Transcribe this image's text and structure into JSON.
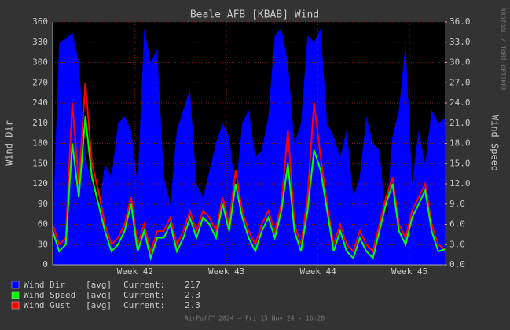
{
  "chart_data": {
    "type": "rrd-area-line",
    "title": "Beale AFB [KBAB] Wind",
    "y_label": "Wind Dir",
    "y2_label": "Wind Speed",
    "watermark": "RRDTOOL / TOBI OETIKER",
    "footer": "AirPuff™ 2024 — Fri 15 Nov 24 - 16:28",
    "legend_cf": "[avg]",
    "legend_current_label": "Current:",
    "xlim": [
      0,
      30
    ],
    "xticks": [
      {
        "value": 6.3,
        "label": "Week 42"
      },
      {
        "value": 13.3,
        "label": "Week 43"
      },
      {
        "value": 20.3,
        "label": "Week 44"
      },
      {
        "value": 27.3,
        "label": "Week 45"
      }
    ],
    "ylim": [
      0,
      360
    ],
    "yticks": [
      0,
      30,
      60,
      90,
      120,
      150,
      180,
      210,
      240,
      270,
      300,
      330,
      360
    ],
    "y2lim": [
      0,
      36
    ],
    "y2ticks": [
      {
        "value": 0,
        "label": "0.0"
      },
      {
        "value": 3,
        "label": "3.0"
      },
      {
        "value": 6,
        "label": "6.0"
      },
      {
        "value": 9,
        "label": "9.0"
      },
      {
        "value": 12,
        "label": "12.0"
      },
      {
        "value": 15,
        "label": "15.0"
      },
      {
        "value": 18,
        "label": "18.0"
      },
      {
        "value": 21,
        "label": "21.0"
      },
      {
        "value": 24,
        "label": "24.0"
      },
      {
        "value": 27,
        "label": "27.0"
      },
      {
        "value": 30,
        "label": "30.0"
      },
      {
        "value": 33,
        "label": "33.0"
      },
      {
        "value": 36,
        "label": "36.0"
      }
    ],
    "grid": true,
    "x": [
      0,
      0.5,
      1,
      1.5,
      2,
      2.5,
      3,
      3.5,
      4,
      4.5,
      5,
      5.5,
      6,
      6.5,
      7,
      7.5,
      8,
      8.5,
      9,
      9.5,
      10,
      10.5,
      11,
      11.5,
      12,
      12.5,
      13,
      13.5,
      14,
      14.5,
      15,
      15.5,
      16,
      16.5,
      17,
      17.5,
      18,
      18.5,
      19,
      19.5,
      20,
      20.5,
      21,
      21.5,
      22,
      22.5,
      23,
      23.5,
      24,
      24.5,
      25,
      25.5,
      26,
      26.5,
      27,
      27.5,
      28,
      28.5,
      29,
      29.5,
      30
    ],
    "series": [
      {
        "name": "Wind Dir",
        "color": "#0000ff",
        "style": "area",
        "current": 217,
        "values": [
          60,
          330,
          335,
          345,
          300,
          160,
          120,
          80,
          150,
          130,
          210,
          220,
          200,
          120,
          350,
          300,
          320,
          130,
          90,
          200,
          230,
          260,
          120,
          100,
          140,
          180,
          210,
          190,
          110,
          210,
          230,
          160,
          170,
          220,
          340,
          350,
          300,
          180,
          210,
          340,
          330,
          350,
          210,
          190,
          160,
          200,
          100,
          130,
          220,
          180,
          170,
          70,
          190,
          230,
          330,
          120,
          200,
          150,
          230,
          210,
          217
        ]
      },
      {
        "name": "Wind Speed",
        "color": "#00ff00",
        "style": "line",
        "axis": "y2",
        "current": 2.3,
        "values": [
          5,
          2,
          3,
          18,
          10,
          22,
          13,
          9,
          5,
          2,
          3,
          5,
          9,
          2,
          5,
          1,
          4,
          4,
          6,
          2,
          4,
          7,
          4,
          7,
          6,
          4,
          9,
          5,
          12,
          7,
          4,
          2,
          5,
          7,
          4,
          8,
          15,
          5,
          2,
          8,
          17,
          14,
          8,
          2,
          5,
          2,
          1,
          4,
          2,
          1,
          5,
          9,
          12,
          5,
          3,
          7,
          9,
          11,
          5,
          2,
          2.3
        ]
      },
      {
        "name": "Wind Gust",
        "color": "#ff0000",
        "style": "line",
        "axis": "y2",
        "current": 2.3,
        "values": [
          6,
          3,
          4,
          24,
          12,
          27,
          15,
          11,
          6,
          3,
          4,
          6,
          10,
          3,
          6,
          2,
          5,
          5,
          7,
          3,
          5,
          8,
          5,
          8,
          7,
          5,
          10,
          6,
          14,
          8,
          5,
          3,
          6,
          8,
          5,
          9,
          20,
          6,
          3,
          10,
          24,
          16,
          9,
          3,
          6,
          3,
          2,
          5,
          3,
          2,
          6,
          10,
          13,
          6,
          4,
          8,
          10,
          12,
          6,
          3,
          2.3
        ]
      }
    ]
  }
}
